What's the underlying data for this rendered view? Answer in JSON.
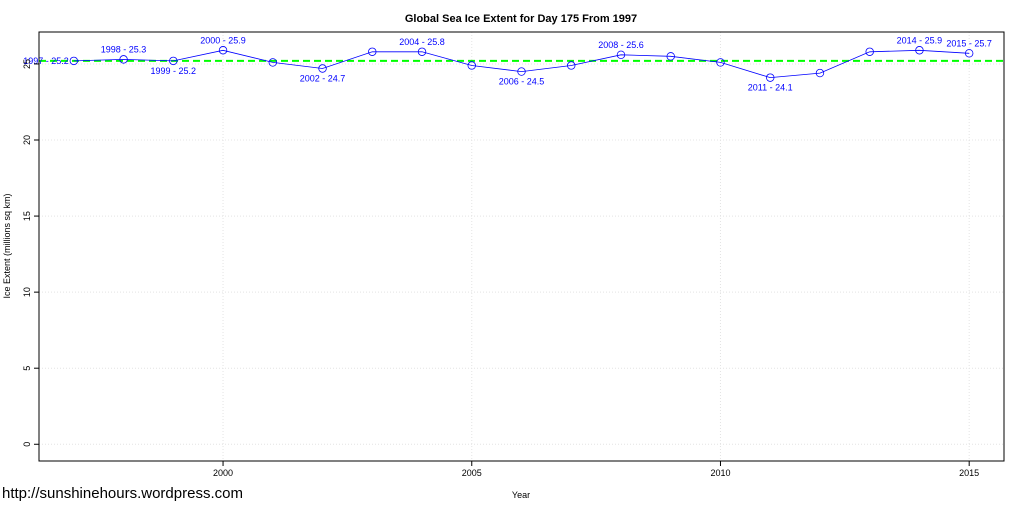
{
  "chart_data": {
    "type": "line",
    "title": "Global Sea Ice Extent for Day 175 From 1997",
    "xlabel": "Year",
    "ylabel": "Ice Extent (millions sq km)",
    "xlim": [
      1996.3,
      2015.7
    ],
    "ylim": [
      -1.1,
      27.1
    ],
    "x_ticks": [
      2000,
      2005,
      2010,
      2015
    ],
    "y_ticks": [
      0,
      5,
      10,
      15,
      20,
      25
    ],
    "grid": true,
    "series": [
      {
        "x": [
          1997,
          1998,
          1999,
          2000,
          2001,
          2002,
          2003,
          2004,
          2005,
          2006,
          2007,
          2008,
          2009,
          2010,
          2011,
          2012,
          2013,
          2014,
          2015
        ],
        "y": [
          25.2,
          25.3,
          25.2,
          25.9,
          25.1,
          24.7,
          25.8,
          25.8,
          24.9,
          24.5,
          24.9,
          25.6,
          25.5,
          25.1,
          24.1,
          24.4,
          25.8,
          25.9,
          25.7
        ],
        "color": "#0000ff"
      }
    ],
    "reference_line": {
      "y": 25.2,
      "color": "#00ff00",
      "style": "dashed"
    },
    "point_labels": [
      {
        "x": 1997,
        "text": "1997 - 25.2",
        "position": "left"
      },
      {
        "x": 1998,
        "text": "1998 - 25.3",
        "position": "above"
      },
      {
        "x": 1999,
        "text": "1999 - 25.2",
        "position": "below"
      },
      {
        "x": 2000,
        "text": "2000 - 25.9",
        "position": "above"
      },
      {
        "x": 2002,
        "text": "2002 - 24.7",
        "position": "below"
      },
      {
        "x": 2004,
        "text": "2004 - 25.8",
        "position": "above"
      },
      {
        "x": 2006,
        "text": "2006 - 24.5",
        "position": "below"
      },
      {
        "x": 2008,
        "text": "2008 - 25.6",
        "position": "above"
      },
      {
        "x": 2011,
        "text": "2011 - 24.1",
        "position": "below"
      },
      {
        "x": 2014,
        "text": "2014 - 25.9",
        "position": "above"
      },
      {
        "x": 2015,
        "text": "2015 - 25.7",
        "position": "above"
      }
    ]
  },
  "watermark": "http://sunshinehours.wordpress.com"
}
